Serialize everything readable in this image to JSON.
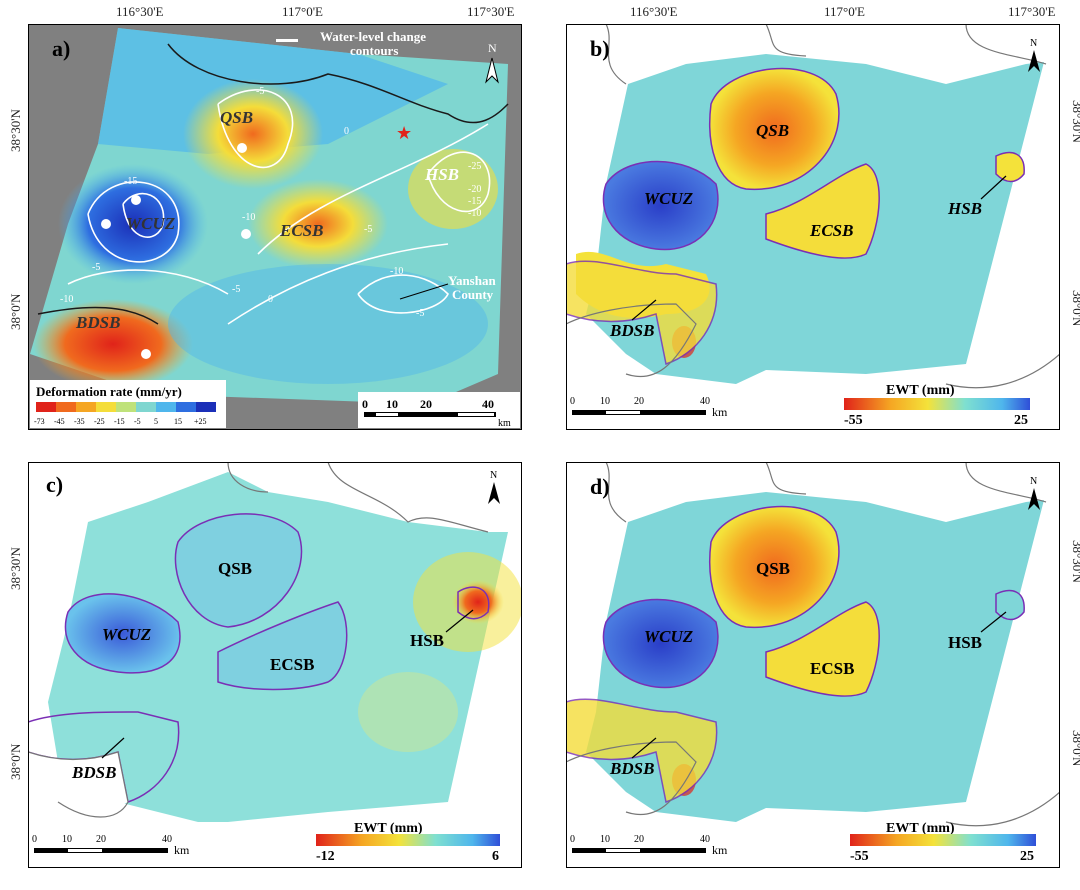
{
  "coords": {
    "lon": [
      "116°30'E",
      "117°0'E",
      "117°30'E"
    ],
    "lat": [
      "38°30'N",
      "38°0'N"
    ]
  },
  "panels": {
    "a": {
      "letter": "a)",
      "north": "N",
      "contour_legend_line1": "Water-level change",
      "contour_legend_line2": "contours",
      "legend_title": "Deformation rate (mm/yr)",
      "legend_ticks": [
        "-73",
        "-45",
        "-35",
        "-25",
        "-15",
        "-5",
        "5",
        "15",
        "+25"
      ],
      "legend_colors": [
        "#e0231a",
        "#f06a1e",
        "#f5a623",
        "#f4dd3a",
        "#bfe27a",
        "#7fd6d0",
        "#4fb6ec",
        "#2e6ee0",
        "#1b2fb8"
      ],
      "scale_ticks": [
        "0",
        "10",
        "20",
        "40"
      ],
      "scale_unit": "km",
      "regions": [
        "QSB",
        "WCUZ",
        "ECSB",
        "HSB",
        "BDSB"
      ],
      "annotation_line1": "Yanshan",
      "annotation_line2": "County",
      "contour_labels": [
        "-5",
        "0",
        "-25",
        "-20",
        "-15",
        "-10",
        "-5",
        "-10",
        "-5",
        "-10",
        "-5",
        "0",
        "-5",
        "-10",
        "-15"
      ]
    },
    "b": {
      "letter": "b)",
      "north": "N",
      "regions": [
        "QSB",
        "WCUZ",
        "ECSB",
        "HSB",
        "BDSB"
      ],
      "colorbar_title": "EWT (mm)",
      "colorbar_min": "-55",
      "colorbar_max": "25",
      "scale_ticks": [
        "0",
        "10",
        "20",
        "40"
      ],
      "scale_unit": "km"
    },
    "c": {
      "letter": "c)",
      "north": "N",
      "regions": [
        "QSB",
        "WCUZ",
        "ECSB",
        "HSB",
        "BDSB"
      ],
      "colorbar_title": "EWT (mm)",
      "colorbar_min": "-12",
      "colorbar_max": "6",
      "scale_ticks": [
        "0",
        "10",
        "20",
        "40"
      ],
      "scale_unit": "km"
    },
    "d": {
      "letter": "d)",
      "north": "N",
      "regions": [
        "QSB",
        "WCUZ",
        "ECSB",
        "HSB",
        "BDSB"
      ],
      "colorbar_title": "EWT (mm)",
      "colorbar_min": "-55",
      "colorbar_max": "25",
      "scale_ticks": [
        "0",
        "10",
        "20",
        "40"
      ],
      "scale_unit": "km"
    }
  },
  "colors": {
    "boundary": "#7a2fb5",
    "background_map": "#8a8a8a",
    "ewt_gradient": [
      "#e0231a",
      "#f5a623",
      "#f4e23a",
      "#7fe0d0",
      "#4fb6ec",
      "#2f4fd8"
    ]
  }
}
